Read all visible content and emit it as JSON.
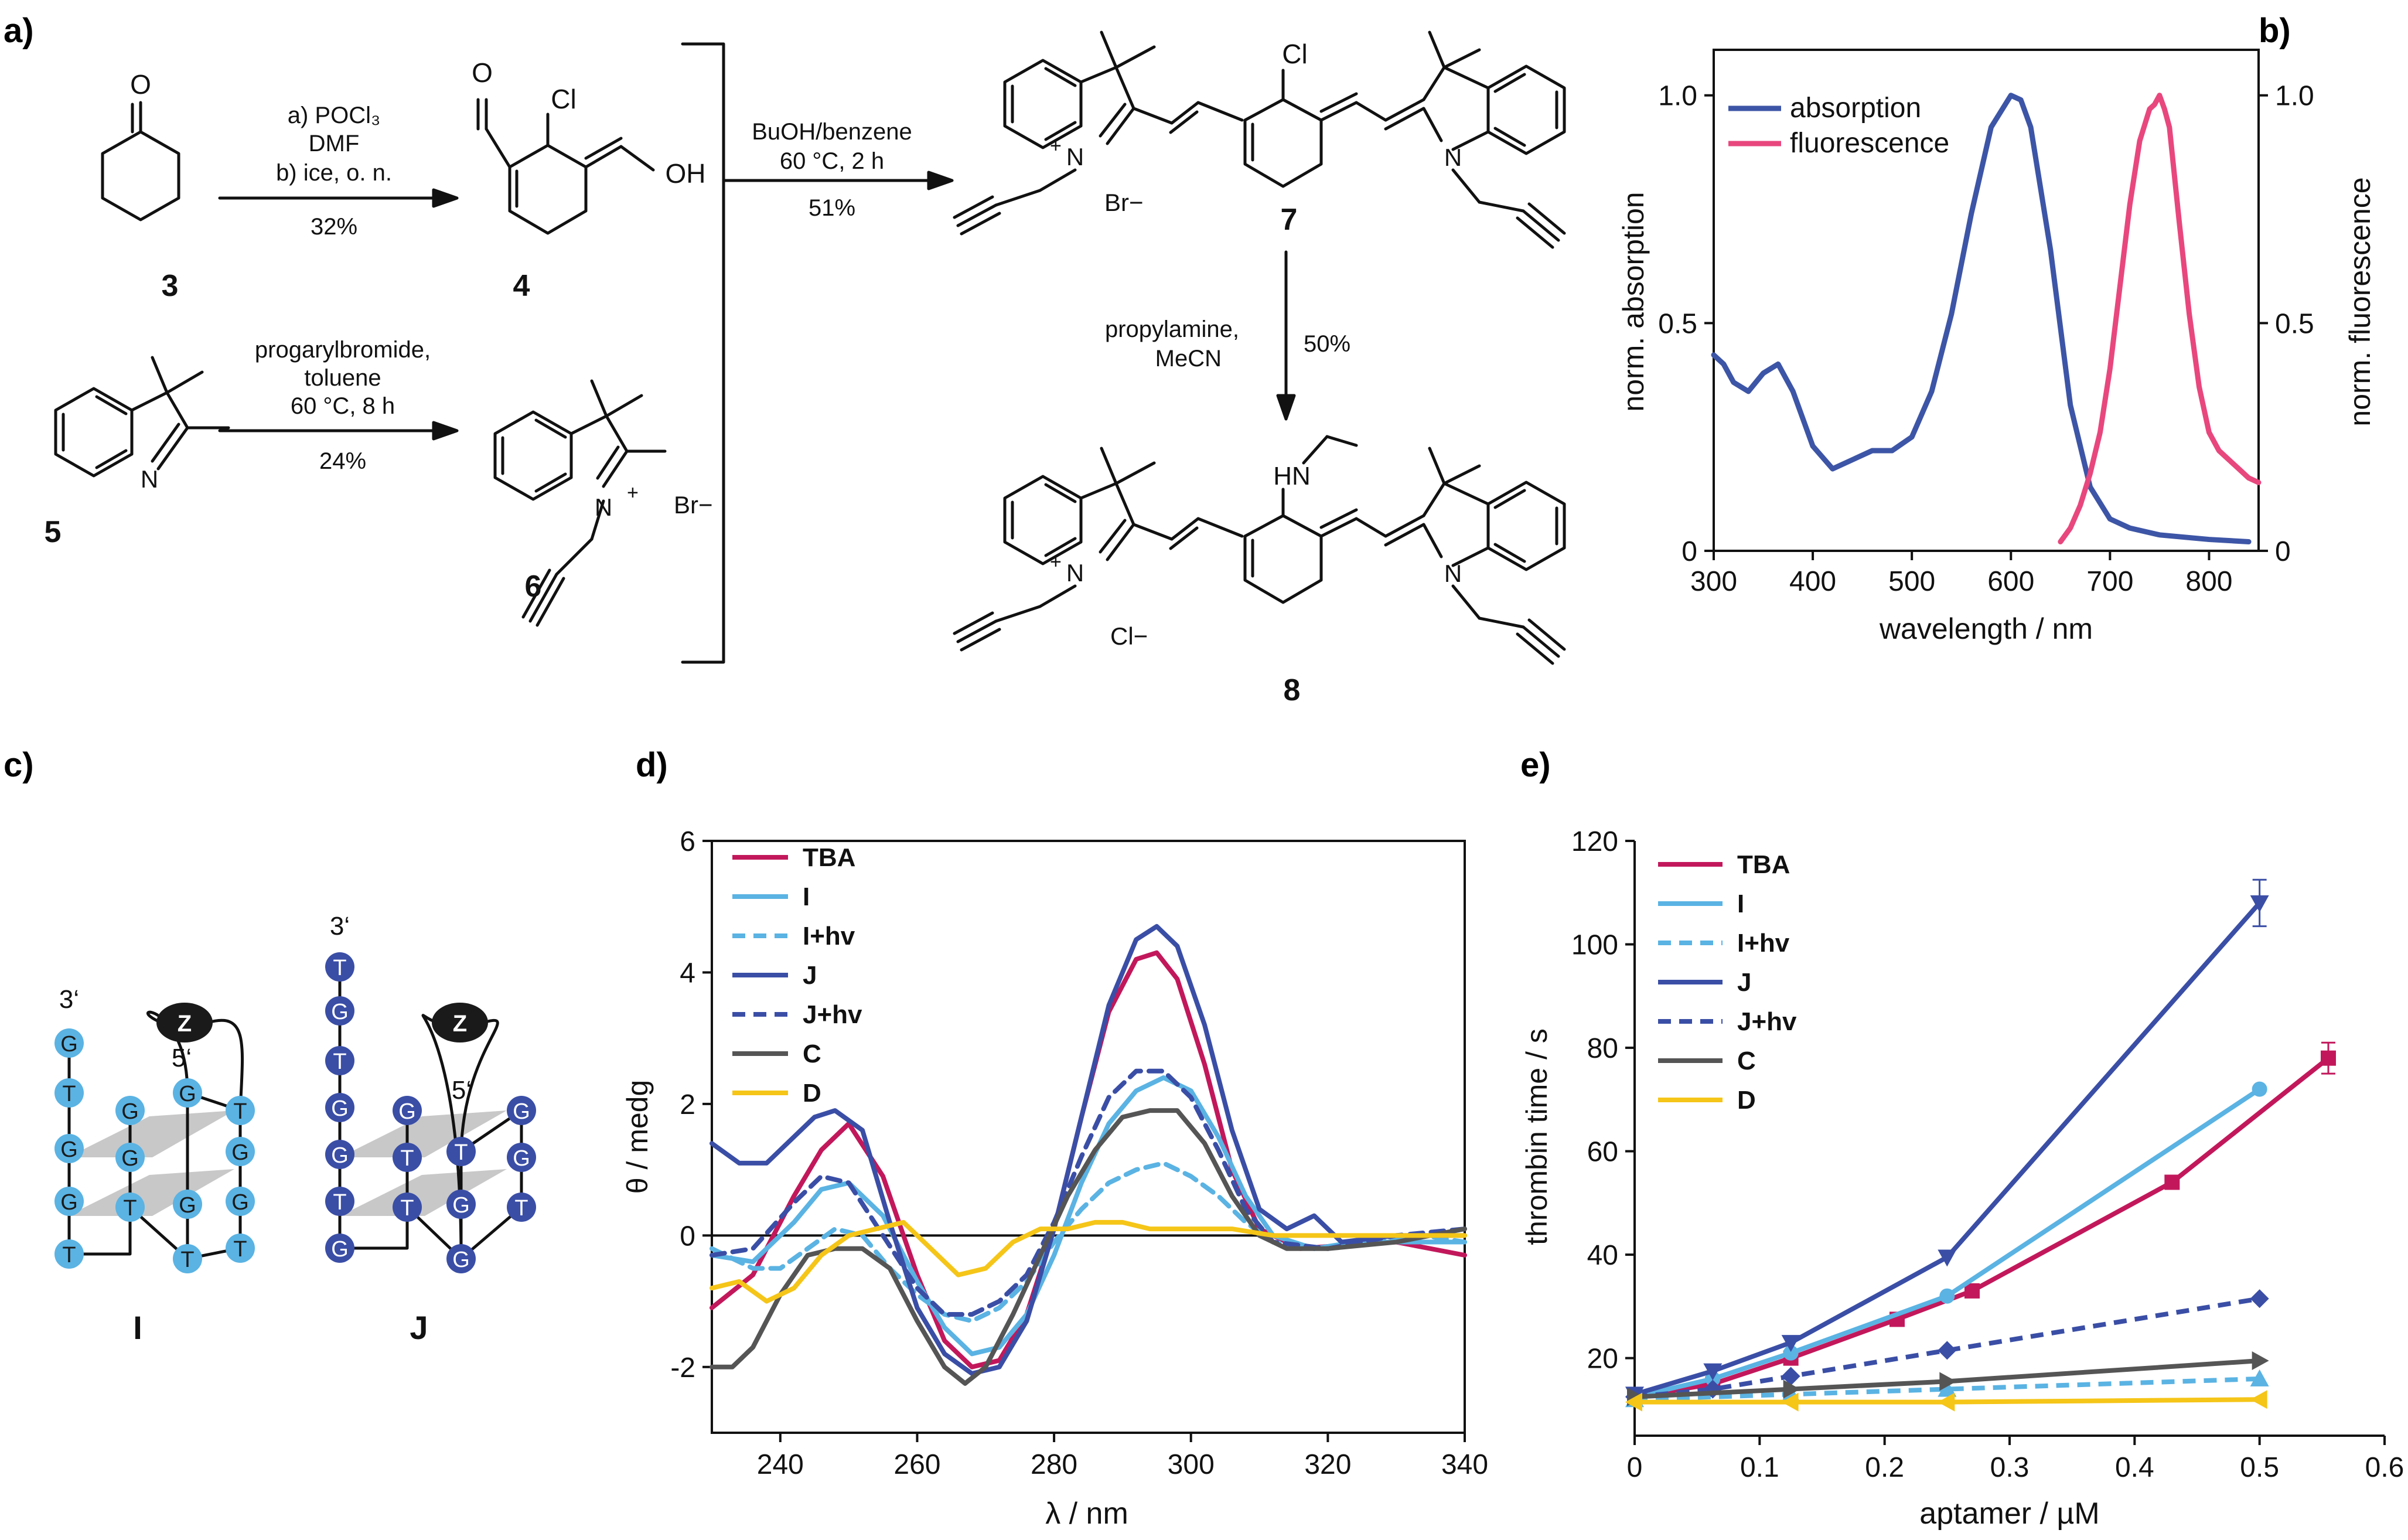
{
  "panels": {
    "a": "a)",
    "b": "b)",
    "c": "c)",
    "d": "d)",
    "e": "e)"
  },
  "scheme": {
    "compounds": {
      "c3": "3",
      "c4": "4",
      "c5": "5",
      "c6": "6",
      "c7": "7",
      "c8": "8"
    },
    "atoms": {
      "O": "O",
      "Cl": "Cl",
      "OH": "OH",
      "N": "N",
      "Nplus": "+N",
      "Br": "Br−",
      "Cl_minus": "Cl−",
      "HN": "HN"
    },
    "step1": {
      "line1": "a) POCl₃",
      "line2": "DMF",
      "line3": "b) ice, o. n.",
      "yield": "32%"
    },
    "step2": {
      "line1": "progarylbromide,",
      "line2": "toluene",
      "line3": "60 °C, 8 h",
      "yield": "24%"
    },
    "step3": {
      "line1": "BuOH/benzene",
      "line2": "60 °C, 2   h",
      "yield": "51%"
    },
    "step4": {
      "line1": "propylamine,",
      "line2": "MeCN",
      "yield": "50%"
    }
  },
  "spectrum": {
    "chart_data": {
      "type": "line",
      "xlabel": "wavelength / nm",
      "ylabel_left": "norm. absorption",
      "ylabel_right": "norm. fluorescence",
      "xlim": [
        300,
        850
      ],
      "ylim": [
        0,
        1.1
      ],
      "xticks": [
        "300",
        "400",
        "500",
        "600",
        "700",
        "800"
      ],
      "yticks": [
        "0",
        "0.5",
        "1.0"
      ],
      "legend_position": "top-left",
      "series": [
        {
          "name": "absorption",
          "color": "#3d55a6",
          "x": [
            300,
            310,
            320,
            335,
            350,
            365,
            380,
            400,
            420,
            440,
            460,
            480,
            500,
            520,
            540,
            560,
            580,
            600,
            610,
            620,
            640,
            660,
            680,
            700,
            720,
            750,
            800,
            840
          ],
          "y": [
            0.43,
            0.41,
            0.37,
            0.35,
            0.39,
            0.41,
            0.35,
            0.23,
            0.18,
            0.2,
            0.22,
            0.22,
            0.25,
            0.35,
            0.52,
            0.74,
            0.93,
            1.0,
            0.99,
            0.93,
            0.66,
            0.32,
            0.14,
            0.07,
            0.05,
            0.035,
            0.025,
            0.02
          ]
        },
        {
          "name": "fluorescence",
          "color": "#e8477d",
          "x": [
            650,
            660,
            670,
            680,
            690,
            700,
            710,
            720,
            730,
            740,
            745,
            750,
            755,
            760,
            770,
            780,
            790,
            800,
            810,
            820,
            830,
            840,
            850
          ],
          "y": [
            0.02,
            0.05,
            0.1,
            0.17,
            0.26,
            0.4,
            0.58,
            0.76,
            0.9,
            0.97,
            0.98,
            1.0,
            0.97,
            0.93,
            0.72,
            0.52,
            0.36,
            0.26,
            0.22,
            0.2,
            0.18,
            0.16,
            0.15
          ]
        }
      ]
    }
  },
  "gquad": {
    "I": {
      "label": "I",
      "z": "Z",
      "three_prime": "3‘",
      "five_prime": "5‘",
      "color": "#5ab3e3",
      "nodes": [
        "G",
        "T",
        "G",
        "G",
        "T",
        "G",
        "G",
        "T",
        "T",
        "G",
        "G",
        "T",
        "G",
        "G",
        "T"
      ]
    },
    "J": {
      "label": "J",
      "z": "Z",
      "three_prime": "3‘",
      "five_prime": "5‘",
      "color": "#3a4ea6",
      "nodes": [
        "T",
        "G",
        "T",
        "G",
        "G",
        "T",
        "G",
        "G",
        "T",
        "T",
        "G",
        "G",
        "T",
        "G",
        "G",
        "T"
      ]
    }
  },
  "cd": {
    "chart_data": {
      "type": "line",
      "xlabel": "λ / nm",
      "ylabel": "θ / medg",
      "xlim": [
        230,
        340
      ],
      "ylim": [
        -3,
        6
      ],
      "xticks": [
        "240",
        "260",
        "280",
        "300",
        "320",
        "340"
      ],
      "yticks": [
        "-2",
        "0",
        "2",
        "4",
        "6"
      ],
      "legend_position": "top-left",
      "series": [
        {
          "name": "TBA",
          "color": "#c2185b",
          "dashed": false,
          "x": [
            230,
            236,
            242,
            246,
            250,
            255,
            260,
            264,
            268,
            272,
            276,
            280,
            284,
            288,
            292,
            295,
            298,
            302,
            306,
            310,
            316,
            322,
            330,
            340
          ],
          "y": [
            -1.1,
            -0.6,
            0.6,
            1.3,
            1.7,
            0.9,
            -0.6,
            -1.6,
            -2.0,
            -1.9,
            -1.2,
            0.1,
            1.8,
            3.4,
            4.2,
            4.3,
            3.9,
            2.6,
            1.0,
            0.1,
            -0.2,
            -0.15,
            -0.1,
            -0.3
          ]
        },
        {
          "name": "I",
          "color": "#5ab3e3",
          "dashed": false,
          "x": [
            230,
            236,
            242,
            246,
            250,
            255,
            260,
            264,
            268,
            272,
            276,
            280,
            284,
            288,
            292,
            296,
            300,
            304,
            308,
            312,
            318,
            324,
            332,
            340
          ],
          "y": [
            -0.3,
            -0.4,
            0.2,
            0.7,
            0.8,
            0.3,
            -0.7,
            -1.4,
            -1.8,
            -1.7,
            -1.2,
            -0.3,
            0.8,
            1.7,
            2.2,
            2.4,
            2.2,
            1.5,
            0.6,
            0.0,
            -0.2,
            -0.1,
            -0.1,
            -0.1
          ]
        },
        {
          "name": "I+hv",
          "color": "#5ab3e3",
          "dashed": true,
          "x": [
            230,
            236,
            240,
            244,
            248,
            252,
            256,
            260,
            264,
            268,
            272,
            276,
            280,
            284,
            288,
            292,
            296,
            300,
            304,
            308,
            312,
            318,
            326,
            334,
            340
          ],
          "y": [
            -0.2,
            -0.5,
            -0.5,
            -0.2,
            0.1,
            0.0,
            -0.5,
            -0.9,
            -1.2,
            -1.3,
            -1.1,
            -0.7,
            -0.1,
            0.4,
            0.8,
            1.0,
            1.1,
            0.9,
            0.6,
            0.2,
            -0.1,
            -0.2,
            -0.1,
            0.0,
            -0.1
          ]
        },
        {
          "name": "J",
          "color": "#3a4ea6",
          "dashed": false,
          "x": [
            230,
            234,
            238,
            242,
            245,
            248,
            252,
            256,
            260,
            264,
            268,
            272,
            276,
            280,
            284,
            288,
            292,
            295,
            298,
            302,
            306,
            310,
            314,
            318,
            322,
            330,
            340
          ],
          "y": [
            1.4,
            1.1,
            1.1,
            1.5,
            1.8,
            1.9,
            1.6,
            0.2,
            -1.1,
            -1.8,
            -2.1,
            -2.0,
            -1.3,
            0.1,
            1.8,
            3.5,
            4.5,
            4.7,
            4.4,
            3.2,
            1.6,
            0.4,
            0.1,
            0.3,
            -0.1,
            0.0,
            0.0
          ]
        },
        {
          "name": "J+hv",
          "color": "#3a4ea6",
          "dashed": true,
          "x": [
            230,
            236,
            242,
            246,
            250,
            255,
            260,
            264,
            268,
            272,
            276,
            280,
            284,
            288,
            292,
            296,
            300,
            304,
            308,
            312,
            320,
            330,
            340
          ],
          "y": [
            -0.3,
            -0.2,
            0.5,
            0.9,
            0.8,
            0.0,
            -0.8,
            -1.2,
            -1.2,
            -1.0,
            -0.6,
            0.2,
            1.2,
            2.1,
            2.5,
            2.5,
            2.1,
            1.3,
            0.4,
            -0.1,
            -0.2,
            0.0,
            0.1
          ]
        },
        {
          "name": "C",
          "color": "#555555",
          "dashed": false,
          "x": [
            230,
            233,
            236,
            240,
            244,
            248,
            252,
            256,
            260,
            264,
            267,
            270,
            274,
            278,
            282,
            286,
            290,
            294,
            298,
            302,
            306,
            310,
            314,
            320,
            330,
            340
          ],
          "y": [
            -2.0,
            -2.0,
            -1.7,
            -0.9,
            -0.3,
            -0.2,
            -0.2,
            -0.5,
            -1.3,
            -2.0,
            -2.25,
            -2.0,
            -1.2,
            -0.3,
            0.6,
            1.3,
            1.8,
            1.9,
            1.9,
            1.4,
            0.6,
            0.0,
            -0.2,
            -0.2,
            -0.1,
            0.1
          ]
        },
        {
          "name": "D",
          "color": "#f5c518",
          "dashed": false,
          "x": [
            230,
            234,
            238,
            242,
            246,
            250,
            254,
            258,
            262,
            266,
            270,
            274,
            278,
            282,
            286,
            290,
            294,
            300,
            306,
            312,
            320,
            330,
            340
          ],
          "y": [
            -0.8,
            -0.7,
            -1.0,
            -0.8,
            -0.3,
            0.0,
            0.1,
            0.2,
            -0.2,
            -0.6,
            -0.5,
            -0.1,
            0.1,
            0.1,
            0.2,
            0.2,
            0.1,
            0.1,
            0.1,
            0.0,
            0.0,
            0.0,
            0.0
          ]
        }
      ]
    }
  },
  "thrombin": {
    "chart_data": {
      "type": "line",
      "xlabel": "aptamer / µM",
      "ylabel": "thrombin time / s",
      "xlim": [
        0,
        0.6
      ],
      "ylim": [
        5,
        120
      ],
      "xticks": [
        "0",
        "0.1",
        "0.2",
        "0.3",
        "0.4",
        "0.5",
        "0.6"
      ],
      "yticks": [
        "20",
        "40",
        "60",
        "80",
        "100",
        "120"
      ],
      "legend_position": "top-left",
      "series": [
        {
          "name": "TBA",
          "color": "#c2185b",
          "dashed": false,
          "marker": "square",
          "x": [
            0,
            0.0625,
            0.125,
            0.21,
            0.27,
            0.43,
            0.555
          ],
          "y": [
            12.5,
            15,
            20,
            27.5,
            33,
            54,
            78
          ],
          "err_last": 3
        },
        {
          "name": "I",
          "color": "#5ab3e3",
          "dashed": false,
          "marker": "circle",
          "x": [
            0,
            0.0625,
            0.125,
            0.25,
            0.5
          ],
          "y": [
            12.5,
            16,
            21,
            32,
            72
          ]
        },
        {
          "name": "I+hv",
          "color": "#5ab3e3",
          "dashed": true,
          "marker": "triangle-up",
          "x": [
            0,
            0.125,
            0.25,
            0.5
          ],
          "y": [
            12,
            13,
            14,
            16
          ]
        },
        {
          "name": "J",
          "color": "#3a4ea6",
          "dashed": false,
          "marker": "triangle-down",
          "x": [
            0,
            0.0625,
            0.125,
            0.25,
            0.5
          ],
          "y": [
            13,
            17.5,
            23,
            39.5,
            108
          ],
          "err_last": 4.5
        },
        {
          "name": "J+hv",
          "color": "#3a4ea6",
          "dashed": true,
          "marker": "diamond",
          "x": [
            0,
            0.0625,
            0.125,
            0.25,
            0.5
          ],
          "y": [
            12.5,
            14,
            16.5,
            21.5,
            31.5
          ]
        },
        {
          "name": "C",
          "color": "#555555",
          "dashed": false,
          "marker": "triangle-right",
          "x": [
            0,
            0.125,
            0.25,
            0.5
          ],
          "y": [
            12.5,
            14,
            15.5,
            19.5
          ]
        },
        {
          "name": "D",
          "color": "#f5c518",
          "dashed": false,
          "marker": "triangle-left",
          "x": [
            0,
            0.125,
            0.25,
            0.5
          ],
          "y": [
            11.5,
            11.5,
            11.5,
            12
          ]
        }
      ]
    }
  }
}
